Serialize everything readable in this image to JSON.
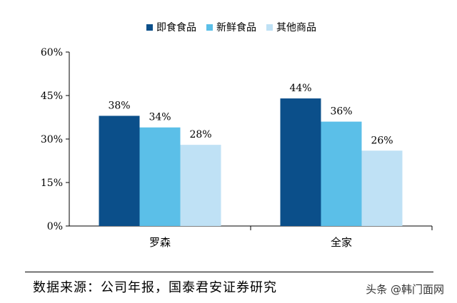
{
  "chart_data": {
    "type": "bar",
    "categories": [
      "罗森",
      "全家"
    ],
    "series": [
      {
        "name": "即食食品",
        "values": [
          38,
          44
        ],
        "color": "#0b4f8a",
        "labels": [
          "38%",
          "44%"
        ]
      },
      {
        "name": "新鲜食品",
        "values": [
          34,
          36
        ],
        "color": "#5bbfe8",
        "labels": [
          "34%",
          "36%"
        ]
      },
      {
        "name": "其他商品",
        "values": [
          28,
          26
        ],
        "color": "#bfe1f5",
        "labels": [
          "28%",
          "26%"
        ]
      }
    ],
    "ylim": [
      0,
      60
    ],
    "yticks": [
      0,
      15,
      30,
      45,
      60
    ],
    "ytick_labels": [
      "0%",
      "15%",
      "30%",
      "45%",
      "60%"
    ],
    "grid": false,
    "legend_position": "top"
  },
  "footer": {
    "source": "数据来源：公司年报，国泰君安证券研究",
    "watermark": "头条 @韩门面网"
  }
}
